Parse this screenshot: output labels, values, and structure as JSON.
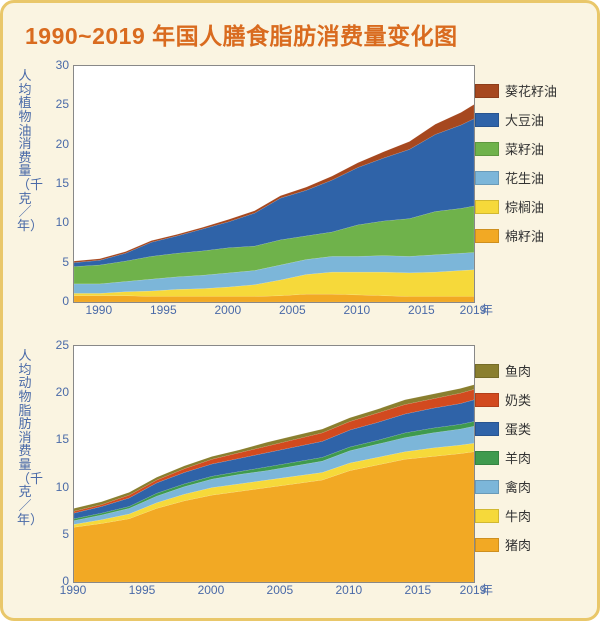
{
  "title": "1990~2019 年国人膳食脂肪消费量变化图",
  "background_color": "#faf4e1",
  "border_color": "#e9c76a",
  "title_color": "#d96b1f",
  "axis_text_color": "#4a6aa8",
  "plot_bg": "#ffffff",
  "plot_border": "#888888",
  "title_fontsize": 23,
  "label_fontsize": 13,
  "tick_fontsize": 12,
  "chart1": {
    "type": "area",
    "ylabel": "人均植物油消费量（千克／年）",
    "xunit_label": "年",
    "xlim": [
      1988,
      2019
    ],
    "ylim": [
      0,
      30
    ],
    "yticks": [
      0,
      5,
      10,
      15,
      20,
      25,
      30
    ],
    "xticks": [
      1990,
      1995,
      2000,
      2005,
      2010,
      2015,
      2019
    ],
    "years": [
      1988,
      1990,
      1992,
      1994,
      1996,
      1998,
      2000,
      2002,
      2004,
      2006,
      2008,
      2010,
      2012,
      2014,
      2016,
      2018,
      2019
    ],
    "series": [
      {
        "name": "棉籽油",
        "label": "棉籽油",
        "color": "#f2a924",
        "values": [
          0.8,
          0.8,
          0.8,
          0.7,
          0.7,
          0.7,
          0.7,
          0.7,
          0.8,
          1.0,
          1.0,
          0.9,
          0.8,
          0.7,
          0.7,
          0.7,
          0.7
        ]
      },
      {
        "name": "棕榈油",
        "label": "棕榈油",
        "color": "#f6d93a",
        "values": [
          0.3,
          0.3,
          0.5,
          0.7,
          0.9,
          1.0,
          1.2,
          1.5,
          2.0,
          2.5,
          2.8,
          2.9,
          3.0,
          3.0,
          3.1,
          3.3,
          3.4
        ]
      },
      {
        "name": "花生油",
        "label": "花生油",
        "color": "#7cb6d9",
        "values": [
          1.2,
          1.2,
          1.3,
          1.5,
          1.6,
          1.7,
          1.8,
          1.8,
          1.9,
          1.9,
          2.0,
          2.0,
          2.1,
          2.1,
          2.2,
          2.2,
          2.2
        ]
      },
      {
        "name": "菜籽油",
        "label": "菜籽油",
        "color": "#6fb24b",
        "values": [
          2.2,
          2.4,
          2.6,
          2.9,
          3.0,
          3.1,
          3.2,
          3.1,
          3.2,
          3.0,
          3.1,
          4.0,
          4.4,
          4.8,
          5.5,
          5.7,
          5.9
        ]
      },
      {
        "name": "大豆油",
        "label": "大豆油",
        "color": "#2f63a8",
        "values": [
          0.5,
          0.6,
          1.0,
          1.8,
          2.2,
          2.8,
          3.3,
          4.2,
          5.3,
          5.8,
          6.6,
          7.3,
          8.0,
          8.8,
          9.8,
          10.6,
          11.1
        ]
      },
      {
        "name": "葵花籽油",
        "label": "葵花籽油",
        "color": "#a6481f",
        "values": [
          0.2,
          0.2,
          0.2,
          0.2,
          0.2,
          0.2,
          0.3,
          0.3,
          0.3,
          0.4,
          0.5,
          0.6,
          0.8,
          1.0,
          1.3,
          1.6,
          1.8
        ]
      }
    ]
  },
  "chart2": {
    "type": "area",
    "ylabel": "人均动物脂肪消费量（千克／年）",
    "xunit_label": "年",
    "xlim": [
      1990,
      2019
    ],
    "ylim": [
      0,
      25
    ],
    "yticks": [
      0,
      5,
      10,
      15,
      20,
      25
    ],
    "xticks": [
      1990,
      1995,
      2000,
      2005,
      2010,
      2015,
      2019
    ],
    "years": [
      1990,
      1992,
      1994,
      1996,
      1998,
      2000,
      2002,
      2004,
      2006,
      2008,
      2010,
      2012,
      2014,
      2016,
      2018,
      2019
    ],
    "series": [
      {
        "name": "猪肉",
        "label": "猪肉",
        "color": "#f2a924",
        "values": [
          5.8,
          6.2,
          6.7,
          7.8,
          8.6,
          9.2,
          9.6,
          10.0,
          10.4,
          10.8,
          11.8,
          12.4,
          13.0,
          13.3,
          13.6,
          13.8
        ]
      },
      {
        "name": "牛肉",
        "label": "牛肉",
        "color": "#f6d93a",
        "values": [
          0.3,
          0.4,
          0.5,
          0.6,
          0.7,
          0.8,
          0.8,
          0.8,
          0.8,
          0.8,
          0.8,
          0.8,
          0.8,
          0.9,
          0.9,
          0.9
        ]
      },
      {
        "name": "禽肉",
        "label": "禽肉",
        "color": "#7cb6d9",
        "values": [
          0.4,
          0.5,
          0.6,
          0.7,
          0.8,
          0.9,
          1.0,
          1.0,
          1.1,
          1.2,
          1.3,
          1.4,
          1.5,
          1.6,
          1.7,
          1.8
        ]
      },
      {
        "name": "羊肉",
        "label": "羊肉",
        "color": "#3f9a4e",
        "values": [
          0.2,
          0.2,
          0.2,
          0.3,
          0.3,
          0.3,
          0.3,
          0.4,
          0.4,
          0.4,
          0.4,
          0.4,
          0.5,
          0.5,
          0.5,
          0.5
        ]
      },
      {
        "name": "蛋类",
        "label": "蛋类",
        "color": "#2f63a8",
        "values": [
          0.6,
          0.7,
          0.9,
          1.1,
          1.2,
          1.3,
          1.4,
          1.5,
          1.6,
          1.7,
          1.8,
          1.9,
          2.0,
          2.1,
          2.2,
          2.3
        ]
      },
      {
        "name": "奶类",
        "label": "奶类",
        "color": "#d24a1f",
        "values": [
          0.2,
          0.2,
          0.3,
          0.3,
          0.4,
          0.5,
          0.6,
          0.7,
          0.8,
          0.9,
          0.9,
          1.0,
          1.0,
          1.0,
          1.1,
          1.1
        ]
      },
      {
        "name": "鱼肉",
        "label": "鱼肉",
        "color": "#8a7f2f",
        "values": [
          0.3,
          0.3,
          0.3,
          0.3,
          0.3,
          0.3,
          0.3,
          0.4,
          0.4,
          0.4,
          0.4,
          0.4,
          0.5,
          0.5,
          0.5,
          0.5
        ]
      }
    ]
  }
}
